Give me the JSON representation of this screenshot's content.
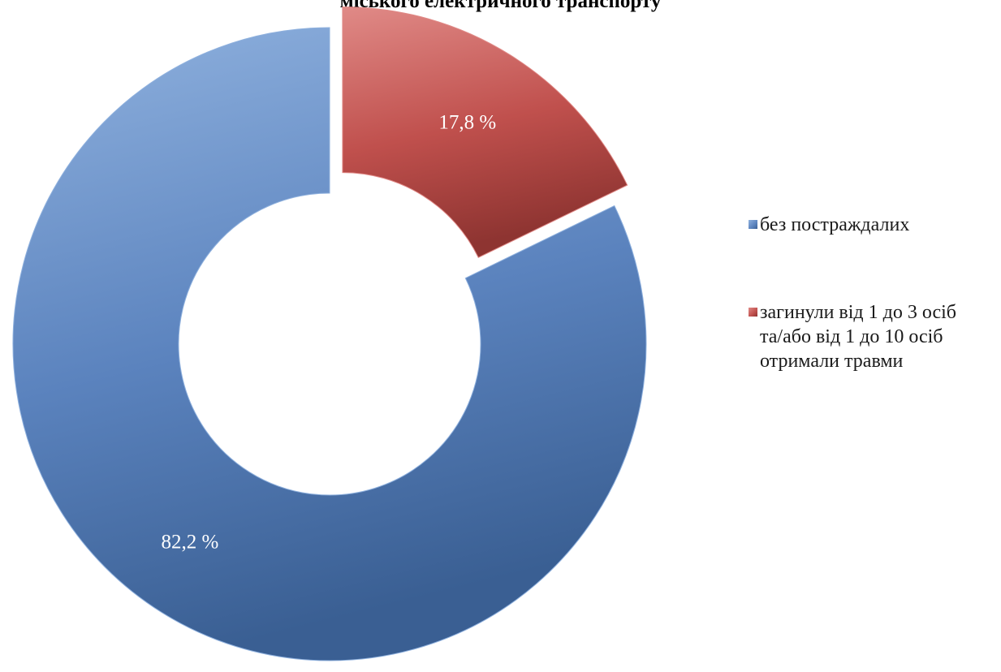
{
  "chart_data": {
    "type": "donut",
    "title": "міського електричного транспорту",
    "slices": [
      {
        "name": "без постраждалих",
        "value": 82.2,
        "label": "82,2 %",
        "color": "#5b83be",
        "color_light": "#8fb1de",
        "color_dark": "#3a5f93"
      },
      {
        "name": "загинули від 1 до 3 осіб\nта/або від 1 до 10 осіб\nотримали травми",
        "value": 17.8,
        "label": "17,8 %",
        "color": "#c0504d",
        "color_light": "#e08a87",
        "color_dark": "#8e3431"
      }
    ],
    "legend_position": "right",
    "exploded_slice": "загинули від 1 до 3 осіб\nта/або від 1 до 10 осіб\nотримали травми"
  }
}
